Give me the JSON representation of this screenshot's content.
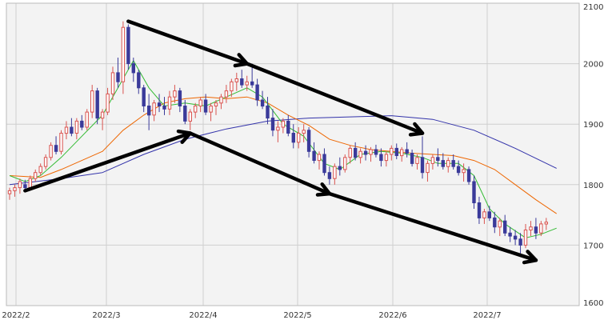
{
  "chart_data": {
    "type": "candlestick",
    "y_axis": {
      "position": "right",
      "range": [
        1600,
        2100
      ],
      "ticks": [
        "2100",
        "2000",
        "1900",
        "1800",
        "1700",
        "1600"
      ]
    },
    "x_axis": {
      "ticks": [
        "2022/2",
        "2022/3",
        "2022/4",
        "2022/5",
        "2022/6",
        "2022/7"
      ],
      "tick_month_index": [
        0,
        1,
        2,
        3,
        4,
        5
      ]
    },
    "grid": true,
    "colors": {
      "up": "#d9534f",
      "down": "#3a3a9a",
      "ma_short": "#33bb33",
      "ma_mid": "#ee6600",
      "ma_long": "#3333aa",
      "arrow": "#000000",
      "plot_bg": "#f3f3f3",
      "grid": "#cfcfcf"
    },
    "candles": [
      [
        1785,
        1795,
        1775,
        1790
      ],
      [
        1790,
        1800,
        1780,
        1795
      ],
      [
        1795,
        1810,
        1785,
        1805
      ],
      [
        1800,
        1808,
        1790,
        1795
      ],
      [
        1795,
        1815,
        1790,
        1810
      ],
      [
        1810,
        1825,
        1805,
        1820
      ],
      [
        1820,
        1835,
        1815,
        1830
      ],
      [
        1830,
        1850,
        1825,
        1845
      ],
      [
        1845,
        1870,
        1840,
        1865
      ],
      [
        1865,
        1880,
        1850,
        1855
      ],
      [
        1855,
        1890,
        1850,
        1885
      ],
      [
        1885,
        1905,
        1875,
        1895
      ],
      [
        1895,
        1910,
        1880,
        1885
      ],
      [
        1885,
        1910,
        1875,
        1905
      ],
      [
        1905,
        1915,
        1890,
        1895
      ],
      [
        1895,
        1925,
        1890,
        1920
      ],
      [
        1920,
        1965,
        1910,
        1955
      ],
      [
        1955,
        1960,
        1900,
        1910
      ],
      [
        1910,
        1925,
        1890,
        1920
      ],
      [
        1920,
        1960,
        1915,
        1950
      ],
      [
        1950,
        1995,
        1940,
        1985
      ],
      [
        1985,
        2010,
        1960,
        1970
      ],
      [
        1970,
        2070,
        1950,
        2060
      ],
      [
        2060,
        2065,
        1990,
        2000
      ],
      [
        2000,
        2010,
        1970,
        1985
      ],
      [
        1985,
        1990,
        1950,
        1960
      ],
      [
        1960,
        1965,
        1920,
        1930
      ],
      [
        1930,
        1950,
        1890,
        1915
      ],
      [
        1915,
        1940,
        1905,
        1935
      ],
      [
        1935,
        1950,
        1920,
        1930
      ],
      [
        1930,
        1945,
        1915,
        1925
      ],
      [
        1925,
        1955,
        1915,
        1945
      ],
      [
        1945,
        1965,
        1935,
        1955
      ],
      [
        1955,
        1960,
        1920,
        1930
      ],
      [
        1930,
        1940,
        1900,
        1905
      ],
      [
        1905,
        1925,
        1890,
        1920
      ],
      [
        1920,
        1935,
        1910,
        1930
      ],
      [
        1930,
        1945,
        1920,
        1940
      ],
      [
        1940,
        1950,
        1915,
        1920
      ],
      [
        1920,
        1935,
        1905,
        1930
      ],
      [
        1930,
        1940,
        1915,
        1935
      ],
      [
        1935,
        1950,
        1925,
        1945
      ],
      [
        1945,
        1965,
        1935,
        1955
      ],
      [
        1955,
        1975,
        1945,
        1970
      ],
      [
        1970,
        1985,
        1955,
        1975
      ],
      [
        1975,
        1990,
        1960,
        1965
      ],
      [
        1965,
        1980,
        1955,
        1970
      ],
      [
        1970,
        2000,
        1960,
        1965
      ],
      [
        1965,
        1975,
        1930,
        1940
      ],
      [
        1940,
        1955,
        1925,
        1930
      ],
      [
        1930,
        1945,
        1900,
        1910
      ],
      [
        1910,
        1925,
        1880,
        1890
      ],
      [
        1890,
        1905,
        1870,
        1895
      ],
      [
        1895,
        1910,
        1885,
        1905
      ],
      [
        1905,
        1915,
        1880,
        1885
      ],
      [
        1885,
        1900,
        1860,
        1870
      ],
      [
        1870,
        1895,
        1860,
        1885
      ],
      [
        1885,
        1900,
        1870,
        1890
      ],
      [
        1890,
        1895,
        1845,
        1855
      ],
      [
        1855,
        1870,
        1835,
        1840
      ],
      [
        1840,
        1855,
        1825,
        1850
      ],
      [
        1850,
        1860,
        1815,
        1820
      ],
      [
        1820,
        1830,
        1800,
        1810
      ],
      [
        1810,
        1835,
        1800,
        1830
      ],
      [
        1830,
        1845,
        1815,
        1825
      ],
      [
        1825,
        1850,
        1820,
        1845
      ],
      [
        1845,
        1865,
        1835,
        1860
      ],
      [
        1860,
        1870,
        1840,
        1845
      ],
      [
        1845,
        1860,
        1835,
        1855
      ],
      [
        1855,
        1865,
        1840,
        1850
      ],
      [
        1850,
        1862,
        1838,
        1858
      ],
      [
        1858,
        1866,
        1845,
        1850
      ],
      [
        1850,
        1860,
        1830,
        1840
      ],
      [
        1840,
        1855,
        1830,
        1850
      ],
      [
        1850,
        1865,
        1840,
        1860
      ],
      [
        1860,
        1868,
        1842,
        1848
      ],
      [
        1848,
        1862,
        1838,
        1858
      ],
      [
        1858,
        1870,
        1845,
        1852
      ],
      [
        1852,
        1858,
        1830,
        1835
      ],
      [
        1835,
        1850,
        1825,
        1845
      ],
      [
        1845,
        1880,
        1810,
        1820
      ],
      [
        1820,
        1840,
        1805,
        1835
      ],
      [
        1835,
        1850,
        1825,
        1845
      ],
      [
        1845,
        1860,
        1830,
        1840
      ],
      [
        1840,
        1852,
        1825,
        1830
      ],
      [
        1830,
        1845,
        1820,
        1840
      ],
      [
        1840,
        1850,
        1825,
        1830
      ],
      [
        1830,
        1840,
        1815,
        1820
      ],
      [
        1820,
        1835,
        1805,
        1825
      ],
      [
        1825,
        1830,
        1800,
        1805
      ],
      [
        1805,
        1815,
        1760,
        1770
      ],
      [
        1770,
        1780,
        1735,
        1745
      ],
      [
        1745,
        1760,
        1735,
        1755
      ],
      [
        1755,
        1765,
        1740,
        1745
      ],
      [
        1745,
        1755,
        1720,
        1730
      ],
      [
        1730,
        1745,
        1715,
        1740
      ],
      [
        1740,
        1750,
        1715,
        1720
      ],
      [
        1720,
        1730,
        1705,
        1715
      ],
      [
        1715,
        1725,
        1700,
        1710
      ],
      [
        1710,
        1720,
        1685,
        1700
      ],
      [
        1700,
        1735,
        1695,
        1725
      ],
      [
        1725,
        1740,
        1715,
        1730
      ],
      [
        1730,
        1745,
        1710,
        1720
      ],
      [
        1720,
        1740,
        1715,
        1735
      ],
      [
        1735,
        1745,
        1725,
        1738
      ]
    ],
    "ma_short": [
      [
        0,
        1815
      ],
      [
        3,
        1805
      ],
      [
        6,
        1815
      ],
      [
        10,
        1845
      ],
      [
        14,
        1880
      ],
      [
        18,
        1915
      ],
      [
        21,
        1960
      ],
      [
        24,
        2005
      ],
      [
        27,
        1960
      ],
      [
        30,
        1930
      ],
      [
        34,
        1935
      ],
      [
        38,
        1930
      ],
      [
        42,
        1945
      ],
      [
        46,
        1960
      ],
      [
        49,
        1945
      ],
      [
        53,
        1900
      ],
      [
        57,
        1880
      ],
      [
        61,
        1835
      ],
      [
        64,
        1825
      ],
      [
        68,
        1850
      ],
      [
        72,
        1855
      ],
      [
        76,
        1852
      ],
      [
        80,
        1845
      ],
      [
        83,
        1835
      ],
      [
        87,
        1835
      ],
      [
        90,
        1815
      ],
      [
        93,
        1760
      ],
      [
        96,
        1735
      ],
      [
        100,
        1712
      ],
      [
        103,
        1718
      ],
      [
        106,
        1728
      ]
    ],
    "ma_mid": [
      [
        0,
        1815
      ],
      [
        6,
        1812
      ],
      [
        10,
        1825
      ],
      [
        14,
        1840
      ],
      [
        18,
        1855
      ],
      [
        22,
        1890
      ],
      [
        26,
        1915
      ],
      [
        30,
        1935
      ],
      [
        34,
        1942
      ],
      [
        38,
        1945
      ],
      [
        42,
        1942
      ],
      [
        46,
        1945
      ],
      [
        50,
        1935
      ],
      [
        54,
        1915
      ],
      [
        58,
        1898
      ],
      [
        62,
        1875
      ],
      [
        66,
        1865
      ],
      [
        70,
        1858
      ],
      [
        74,
        1855
      ],
      [
        78,
        1852
      ],
      [
        82,
        1850
      ],
      [
        86,
        1848
      ],
      [
        90,
        1840
      ],
      [
        94,
        1825
      ],
      [
        98,
        1800
      ],
      [
        102,
        1775
      ],
      [
        106,
        1752
      ]
    ],
    "ma_long": [
      [
        0,
        1800
      ],
      [
        10,
        1810
      ],
      [
        18,
        1820
      ],
      [
        26,
        1850
      ],
      [
        34,
        1875
      ],
      [
        42,
        1892
      ],
      [
        50,
        1905
      ],
      [
        58,
        1910
      ],
      [
        66,
        1912
      ],
      [
        74,
        1914
      ],
      [
        82,
        1908
      ],
      [
        90,
        1890
      ],
      [
        98,
        1860
      ],
      [
        106,
        1827
      ]
    ],
    "arrows": [
      [
        [
          23,
          2070
        ],
        [
          46,
          2000
        ]
      ],
      [
        [
          46,
          2000
        ],
        [
          80,
          1885
        ]
      ],
      [
        [
          3,
          1790
        ],
        [
          35,
          1885
        ]
      ],
      [
        [
          35,
          1885
        ],
        [
          62,
          1785
        ]
      ],
      [
        [
          62,
          1785
        ],
        [
          102,
          1675
        ]
      ]
    ]
  }
}
